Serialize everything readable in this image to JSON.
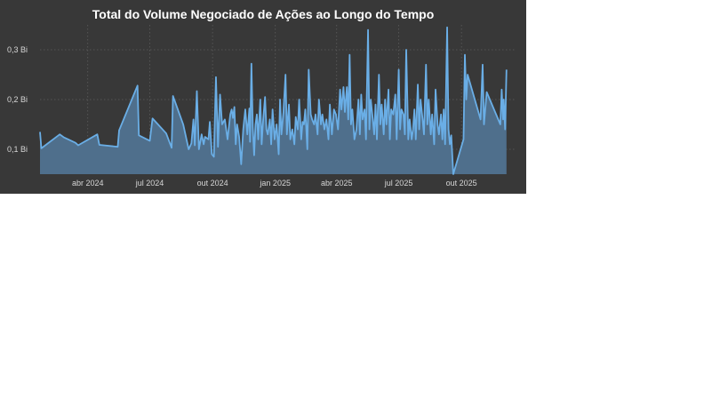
{
  "chart_data": {
    "type": "area",
    "title": "Total do Volume Negociado de Ações ao Longo do Tempo",
    "xlabel": "",
    "ylabel": "",
    "x_axis_type": "date",
    "xlim": [
      "2024-01-22",
      "2025-12-18"
    ],
    "ylim": [
      0.05,
      0.35
    ],
    "y_unit": "Bi",
    "grid": true,
    "colors": {
      "background": "#383838",
      "line": "#6aaee6",
      "fill": "#4f6f8c",
      "title": "#ffffff",
      "ticks": "#d6d6d6",
      "grid": "#5c5c5c"
    },
    "y_ticks": [
      {
        "value": 0.1,
        "label": "0,1 Bi"
      },
      {
        "value": 0.2,
        "label": "0,2 Bi"
      },
      {
        "value": 0.3,
        "label": "0,3 Bi"
      }
    ],
    "x_ticks": [
      {
        "date": "2024-04-01",
        "label": "abr 2024"
      },
      {
        "date": "2024-07-01",
        "label": "jul 2024"
      },
      {
        "date": "2024-10-01",
        "label": "out 2024"
      },
      {
        "date": "2025-01-01",
        "label": "jan 2025"
      },
      {
        "date": "2025-04-01",
        "label": "abr 2025"
      },
      {
        "date": "2025-07-01",
        "label": "jul 2025"
      },
      {
        "date": "2025-10-01",
        "label": "out 2025"
      }
    ],
    "series": [
      {
        "values": [
          [
            "2024-01-22",
            0.135
          ],
          [
            "2024-01-24",
            0.102
          ],
          [
            "2024-02-20",
            0.13
          ],
          [
            "2024-02-26",
            0.124
          ],
          [
            "2024-03-14",
            0.113
          ],
          [
            "2024-03-18",
            0.108
          ],
          [
            "2024-04-15",
            0.13
          ],
          [
            "2024-04-18",
            0.109
          ],
          [
            "2024-05-15",
            0.105
          ],
          [
            "2024-05-17",
            0.138
          ],
          [
            "2024-06-13",
            0.228
          ],
          [
            "2024-06-15",
            0.128
          ],
          [
            "2024-07-01",
            0.117
          ],
          [
            "2024-07-05",
            0.162
          ],
          [
            "2024-07-25",
            0.132
          ],
          [
            "2024-08-02",
            0.103
          ],
          [
            "2024-08-04",
            0.207
          ],
          [
            "2024-08-19",
            0.15
          ],
          [
            "2024-08-27",
            0.1
          ],
          [
            "2024-08-31",
            0.112
          ],
          [
            "2024-09-03",
            0.16
          ],
          [
            "2024-09-05",
            0.108
          ],
          [
            "2024-09-08",
            0.217
          ],
          [
            "2024-09-11",
            0.1
          ],
          [
            "2024-09-15",
            0.13
          ],
          [
            "2024-09-18",
            0.11
          ],
          [
            "2024-09-20",
            0.125
          ],
          [
            "2024-09-25",
            0.12
          ],
          [
            "2024-09-27",
            0.155
          ],
          [
            "2024-09-30",
            0.09
          ],
          [
            "2024-10-03",
            0.085
          ],
          [
            "2024-10-06",
            0.245
          ],
          [
            "2024-10-09",
            0.105
          ],
          [
            "2024-10-12",
            0.21
          ],
          [
            "2024-10-15",
            0.15
          ],
          [
            "2024-10-19",
            0.16
          ],
          [
            "2024-10-23",
            0.12
          ],
          [
            "2024-10-27",
            0.17
          ],
          [
            "2024-10-29",
            0.18
          ],
          [
            "2024-10-31",
            0.163
          ],
          [
            "2024-11-02",
            0.185
          ],
          [
            "2024-11-04",
            0.11
          ],
          [
            "2024-11-06",
            0.15
          ],
          [
            "2024-11-09",
            0.125
          ],
          [
            "2024-11-12",
            0.07
          ],
          [
            "2024-11-15",
            0.14
          ],
          [
            "2024-11-18",
            0.18
          ],
          [
            "2024-11-21",
            0.13
          ],
          [
            "2024-11-24",
            0.182
          ],
          [
            "2024-11-25",
            0.115
          ],
          [
            "2024-11-27",
            0.272
          ],
          [
            "2024-11-29",
            0.145
          ],
          [
            "2024-12-01",
            0.088
          ],
          [
            "2024-12-03",
            0.15
          ],
          [
            "2024-12-05",
            0.17
          ],
          [
            "2024-12-07",
            0.12
          ],
          [
            "2024-12-10",
            0.2
          ],
          [
            "2024-12-12",
            0.11
          ],
          [
            "2024-12-14",
            0.155
          ],
          [
            "2024-12-17",
            0.205
          ],
          [
            "2024-12-19",
            0.14
          ],
          [
            "2024-12-21",
            0.13
          ],
          [
            "2024-12-24",
            0.16
          ],
          [
            "2024-12-26",
            0.11
          ],
          [
            "2024-12-28",
            0.18
          ],
          [
            "2024-12-31",
            0.12
          ],
          [
            "2025-01-03",
            0.15
          ],
          [
            "2025-01-06",
            0.09
          ],
          [
            "2025-01-08",
            0.2
          ],
          [
            "2025-01-10",
            0.13
          ],
          [
            "2025-01-13",
            0.175
          ],
          [
            "2025-01-16",
            0.25
          ],
          [
            "2025-01-18",
            0.13
          ],
          [
            "2025-01-21",
            0.19
          ],
          [
            "2025-01-23",
            0.12
          ],
          [
            "2025-01-26",
            0.14
          ],
          [
            "2025-01-29",
            0.11
          ],
          [
            "2025-01-31",
            0.165
          ],
          [
            "2025-02-03",
            0.14
          ],
          [
            "2025-02-05",
            0.2
          ],
          [
            "2025-02-08",
            0.12
          ],
          [
            "2025-02-10",
            0.155
          ],
          [
            "2025-02-12",
            0.15
          ],
          [
            "2025-02-14",
            0.18
          ],
          [
            "2025-02-17",
            0.1
          ],
          [
            "2025-02-19",
            0.26
          ],
          [
            "2025-02-22",
            0.17
          ],
          [
            "2025-02-24",
            0.16
          ],
          [
            "2025-02-27",
            0.15
          ],
          [
            "2025-03-01",
            0.17
          ],
          [
            "2025-03-04",
            0.13
          ],
          [
            "2025-03-06",
            0.2
          ],
          [
            "2025-03-09",
            0.15
          ],
          [
            "2025-03-11",
            0.17
          ],
          [
            "2025-03-14",
            0.14
          ],
          [
            "2025-03-17",
            0.16
          ],
          [
            "2025-03-20",
            0.12
          ],
          [
            "2025-03-22",
            0.19
          ],
          [
            "2025-03-25",
            0.13
          ],
          [
            "2025-03-28",
            0.18
          ],
          [
            "2025-03-31",
            0.17
          ],
          [
            "2025-04-03",
            0.14
          ],
          [
            "2025-04-06",
            0.22
          ],
          [
            "2025-04-08",
            0.18
          ],
          [
            "2025-04-11",
            0.225
          ],
          [
            "2025-04-13",
            0.175
          ],
          [
            "2025-04-16",
            0.225
          ],
          [
            "2025-04-18",
            0.16
          ],
          [
            "2025-04-20",
            0.29
          ],
          [
            "2025-04-22",
            0.15
          ],
          [
            "2025-04-24",
            0.18
          ],
          [
            "2025-04-27",
            0.12
          ],
          [
            "2025-04-30",
            0.14
          ],
          [
            "2025-05-03",
            0.2
          ],
          [
            "2025-05-05",
            0.13
          ],
          [
            "2025-05-07",
            0.21
          ],
          [
            "2025-05-09",
            0.16
          ],
          [
            "2025-05-12",
            0.18
          ],
          [
            "2025-05-14",
            0.12
          ],
          [
            "2025-05-17",
            0.34
          ],
          [
            "2025-05-19",
            0.14
          ],
          [
            "2025-05-21",
            0.2
          ],
          [
            "2025-05-24",
            0.16
          ],
          [
            "2025-05-26",
            0.13
          ],
          [
            "2025-05-28",
            0.19
          ],
          [
            "2025-05-30",
            0.12
          ],
          [
            "2025-06-02",
            0.25
          ],
          [
            "2025-06-04",
            0.15
          ],
          [
            "2025-06-06",
            0.19
          ],
          [
            "2025-06-09",
            0.13
          ],
          [
            "2025-06-11",
            0.2
          ],
          [
            "2025-06-13",
            0.15
          ],
          [
            "2025-06-16",
            0.22
          ],
          [
            "2025-06-18",
            0.12
          ],
          [
            "2025-06-20",
            0.18
          ],
          [
            "2025-06-23",
            0.17
          ],
          [
            "2025-06-26",
            0.21
          ],
          [
            "2025-06-28",
            0.12
          ],
          [
            "2025-07-01",
            0.26
          ],
          [
            "2025-07-03",
            0.14
          ],
          [
            "2025-07-05",
            0.18
          ],
          [
            "2025-07-08",
            0.17
          ],
          [
            "2025-07-10",
            0.13
          ],
          [
            "2025-07-12",
            0.3
          ],
          [
            "2025-07-15",
            0.12
          ],
          [
            "2025-07-17",
            0.16
          ],
          [
            "2025-07-20",
            0.12
          ],
          [
            "2025-07-22",
            0.14
          ],
          [
            "2025-07-24",
            0.18
          ],
          [
            "2025-07-26",
            0.12
          ],
          [
            "2025-07-29",
            0.23
          ],
          [
            "2025-07-31",
            0.14
          ],
          [
            "2025-08-02",
            0.2
          ],
          [
            "2025-08-05",
            0.16
          ],
          [
            "2025-08-07",
            0.13
          ],
          [
            "2025-08-10",
            0.27
          ],
          [
            "2025-08-12",
            0.15
          ],
          [
            "2025-08-14",
            0.2
          ],
          [
            "2025-08-17",
            0.13
          ],
          [
            "2025-08-19",
            0.17
          ],
          [
            "2025-08-22",
            0.11
          ],
          [
            "2025-08-24",
            0.22
          ],
          [
            "2025-08-27",
            0.15
          ],
          [
            "2025-08-29",
            0.13
          ],
          [
            "2025-09-01",
            0.17
          ],
          [
            "2025-09-03",
            0.12
          ],
          [
            "2025-09-05",
            0.18
          ],
          [
            "2025-09-07",
            0.11
          ],
          [
            "2025-09-10",
            0.345
          ],
          [
            "2025-09-12",
            0.14
          ],
          [
            "2025-09-14",
            0.11
          ],
          [
            "2025-09-16",
            0.128
          ],
          [
            "2025-09-19",
            0.05
          ],
          [
            "2025-10-04",
            0.12
          ],
          [
            "2025-10-06",
            0.29
          ],
          [
            "2025-10-08",
            0.2
          ],
          [
            "2025-10-10",
            0.25
          ],
          [
            "2025-10-29",
            0.16
          ],
          [
            "2025-11-01",
            0.27
          ],
          [
            "2025-11-03",
            0.15
          ],
          [
            "2025-11-07",
            0.215
          ],
          [
            "2025-11-27",
            0.15
          ],
          [
            "2025-11-29",
            0.22
          ],
          [
            "2025-12-01",
            0.16
          ],
          [
            "2025-12-02",
            0.2
          ],
          [
            "2025-12-04",
            0.14
          ],
          [
            "2025-12-06",
            0.26
          ]
        ]
      }
    ]
  }
}
